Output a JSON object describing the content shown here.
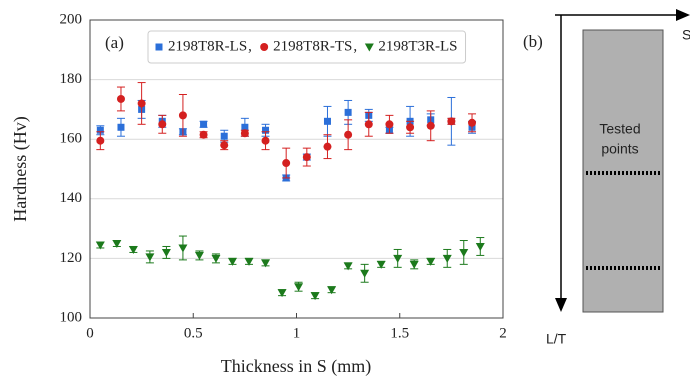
{
  "chart_data": {
    "type": "scatter",
    "annotation": "(a)",
    "xlabel": "Thickness in S (mm)",
    "ylabel": "Hardness (Hv)",
    "xlim": [
      0,
      2
    ],
    "xticks": [
      0,
      0.5,
      1,
      1.5,
      2
    ],
    "ylim": [
      100,
      200
    ],
    "yticks": [
      100,
      120,
      140,
      160,
      180,
      200
    ],
    "grid": true,
    "legend": "top",
    "series": [
      {
        "name": "2198T8R-LS",
        "color": "#2b6fd9",
        "marker": "square",
        "x": [
          0.05,
          0.15,
          0.25,
          0.35,
          0.45,
          0.55,
          0.65,
          0.75,
          0.85,
          0.95,
          1.05,
          1.15,
          1.25,
          1.35,
          1.45,
          1.55,
          1.65,
          1.75,
          1.85
        ],
        "values": [
          163,
          164,
          170,
          166,
          162.5,
          165,
          161,
          164,
          163,
          147,
          154,
          166,
          169,
          168,
          163,
          166,
          166.5,
          166,
          164
        ],
        "errors": [
          1.5,
          3,
          3,
          2,
          1,
          1,
          2,
          3,
          2,
          1,
          1,
          5,
          4,
          2,
          1,
          5,
          2,
          8,
          2
        ]
      },
      {
        "name": "2198T8R-TS",
        "color": "#d42020",
        "marker": "circle",
        "x": [
          0.05,
          0.15,
          0.25,
          0.35,
          0.45,
          0.55,
          0.65,
          0.75,
          0.85,
          0.95,
          1.05,
          1.15,
          1.25,
          1.35,
          1.45,
          1.55,
          1.65,
          1.75,
          1.85
        ],
        "values": [
          159.5,
          173.5,
          172,
          165,
          168,
          161.5,
          158,
          162,
          159.5,
          152,
          154,
          157.5,
          161.5,
          165,
          165,
          164,
          164.5,
          166,
          165.5
        ],
        "errors": [
          3,
          4,
          7,
          3,
          7,
          1,
          1.5,
          1,
          3,
          5,
          3,
          4,
          5,
          4,
          3,
          2,
          5,
          1,
          3
        ]
      },
      {
        "name": "2198T3R-LS",
        "color": "#1c7a1c",
        "marker": "triangle",
        "x": [
          0.05,
          0.13,
          0.21,
          0.29,
          0.37,
          0.45,
          0.53,
          0.61,
          0.69,
          0.77,
          0.85,
          0.93,
          1.01,
          1.09,
          1.17,
          1.25,
          1.33,
          1.41,
          1.49,
          1.57,
          1.65,
          1.73,
          1.81,
          1.89
        ],
        "values": [
          124.5,
          125,
          123,
          120.5,
          122,
          123.5,
          121,
          120,
          119,
          119,
          118.5,
          108.5,
          110.5,
          107.5,
          109.5,
          117.5,
          115,
          118,
          120,
          118,
          119,
          120,
          122,
          124
        ],
        "errors": [
          1,
          1,
          1,
          2,
          2,
          4,
          1.5,
          1.5,
          1,
          1,
          1,
          1,
          1.5,
          1,
          1,
          1,
          3,
          1,
          3,
          1.5,
          1,
          3,
          4,
          3
        ]
      }
    ]
  },
  "diagram": {
    "label": "(b)",
    "axis_right": "S",
    "axis_down": "L/T",
    "region_text": [
      "Tested",
      "points"
    ]
  }
}
